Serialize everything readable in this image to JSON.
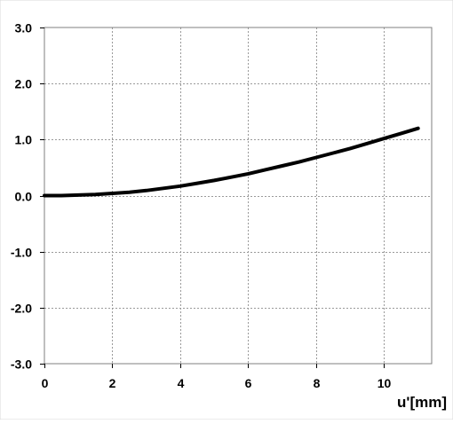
{
  "chart_data": {
    "type": "line",
    "title": "",
    "xlabel": "u'[mm]",
    "ylabel": "",
    "xlim": [
      0,
      11.4
    ],
    "ylim": [
      -3.0,
      3.0
    ],
    "x_ticks": [
      0,
      2,
      4,
      6,
      8,
      10
    ],
    "x_tick_labels": [
      "0",
      "2",
      "4",
      "6",
      "8",
      "10"
    ],
    "y_ticks": [
      3.0,
      2.0,
      1.0,
      0.0,
      -1.0,
      -2.0,
      -3.0
    ],
    "y_tick_labels": [
      "3.0",
      "2.0",
      "1.0",
      "0.0",
      "-1.0",
      "-2.0",
      "-3.0"
    ],
    "grid": true,
    "legend": "none",
    "series": [
      {
        "color": "#000000",
        "x": [
          0,
          0.5,
          1,
          1.5,
          2,
          2.5,
          3,
          3.5,
          4,
          4.5,
          5,
          5.5,
          6,
          6.5,
          7,
          7.5,
          8,
          8.5,
          9,
          9.5,
          10,
          10.5,
          11
        ],
        "y": [
          0.0,
          0.0,
          0.01,
          0.02,
          0.04,
          0.06,
          0.09,
          0.13,
          0.17,
          0.22,
          0.27,
          0.33,
          0.39,
          0.46,
          0.53,
          0.6,
          0.68,
          0.76,
          0.84,
          0.93,
          1.02,
          1.11,
          1.2
        ]
      }
    ]
  }
}
